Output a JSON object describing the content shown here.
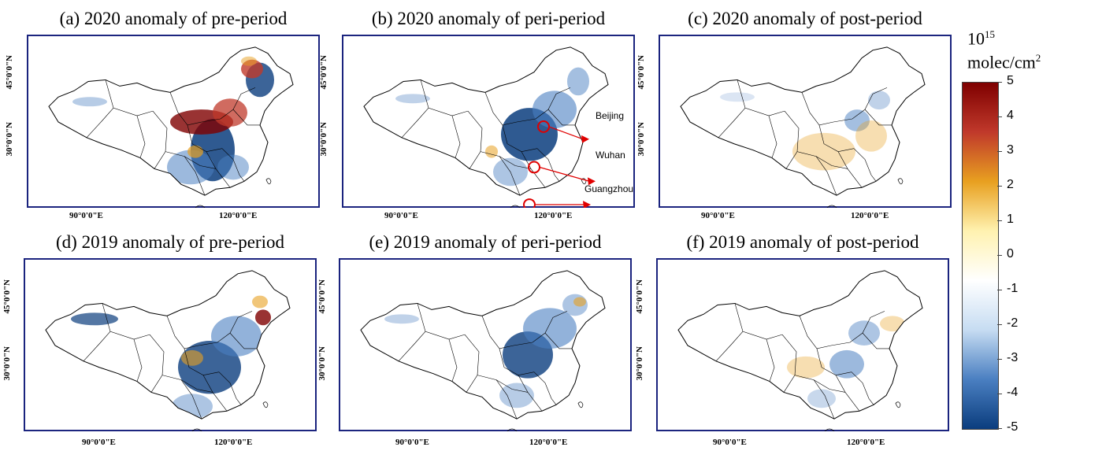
{
  "panels": [
    {
      "title": "(a) 2020 anomaly of pre-period",
      "lat45": "45°0'0\"N",
      "lat30": "30°0'0\"N",
      "lon90": "90°0'0\"E",
      "lon120": "120°0'0\"E"
    },
    {
      "title": "(b) 2020 anomaly of peri-period",
      "lat45": "45°0'0\"N",
      "lat30": "30°0'0\"N",
      "lon90": "90°0'0\"E",
      "lon120": "120°0'0\"E"
    },
    {
      "title": "(c) 2020 anomaly of post-period",
      "lat45": "45°0'0\"N",
      "lat30": "30°0'0\"N",
      "lon90": "90°0'0\"E",
      "lon120": "120°0'0\"E"
    },
    {
      "title": "(d) 2019 anomaly of pre-period",
      "lat45": "45°0'0\"N",
      "lat30": "30°0'0\"N",
      "lon90": "90°0'0\"E",
      "lon120": "120°0'0\"E"
    },
    {
      "title": "(e) 2019 anomaly of peri-period",
      "lat45": "45°0'0\"N",
      "lat30": "30°0'0\"N",
      "lon90": "90°0'0\"E",
      "lon120": "120°0'0\"E"
    },
    {
      "title": "(f) 2019 anomaly of post-period",
      "lat45": "45°0'0\"N",
      "lat30": "30°0'0\"N",
      "lon90": "90°0'0\"E",
      "lon120": "120°0'0\"E"
    }
  ],
  "annotations": {
    "beijing": "Beijing",
    "wuhan": "Wuhan",
    "guangzhou": "Guangzhou"
  },
  "colorbar": {
    "unit_base": "10",
    "unit_exp": "15",
    "unit_name": "molec/cm",
    "unit_name_exp": "2",
    "ticks": [
      "5",
      "4",
      "3",
      "2",
      "1",
      "0",
      "-1",
      "-2",
      "-3",
      "-4",
      "-5"
    ],
    "colors": [
      "#7f0000",
      "#c0392b",
      "#e8a020",
      "#fff2b0",
      "#ffffff",
      "#c6dcf2",
      "#4a7fc1",
      "#0b3d7e"
    ]
  },
  "frame_color": "#1a237e"
}
